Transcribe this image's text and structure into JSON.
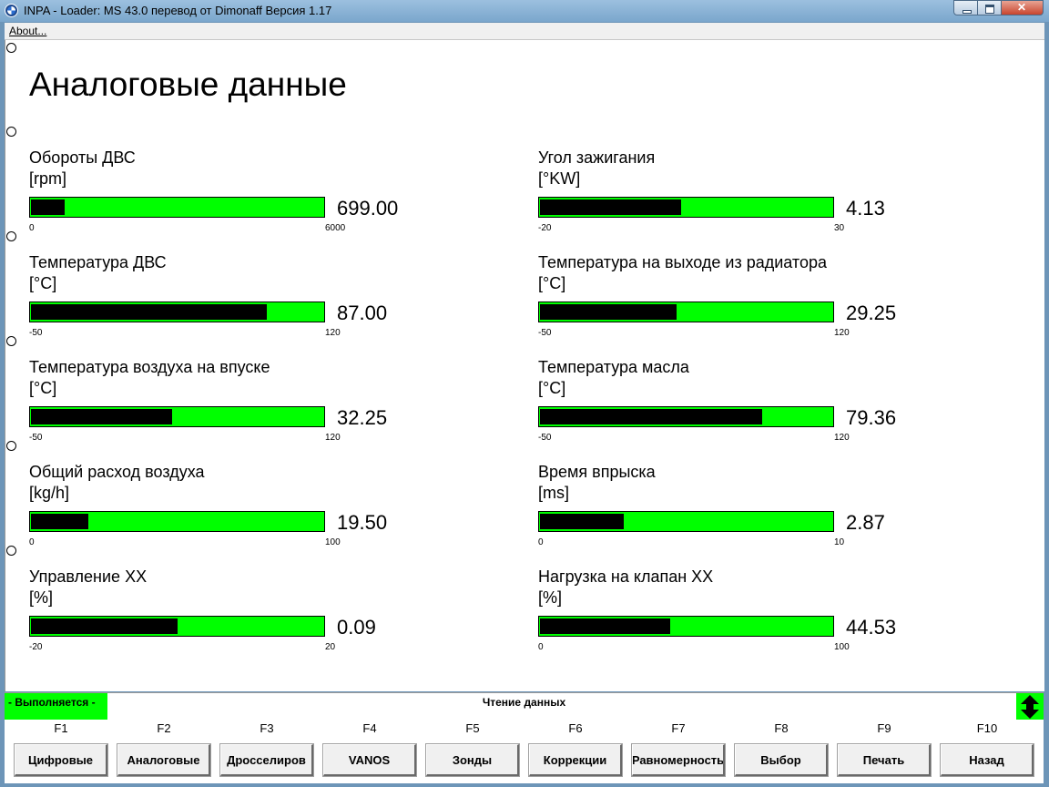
{
  "window": {
    "title": "INPA - Loader:  MS 43.0 перевод от Dimonaff Версия 1.17"
  },
  "menu": {
    "about": "About..."
  },
  "page": {
    "title": "Аналоговые данные"
  },
  "gauges": [
    {
      "label": "Обороты ДВС",
      "unit": "[rpm]",
      "value": "699.00",
      "min": "0",
      "max": "6000",
      "level": 0.1165
    },
    {
      "label": "Угол зажигания",
      "unit": "[°KW]",
      "value": "4.13",
      "min": "-20",
      "max": "30",
      "level": 0.4826
    },
    {
      "label": "Температура ДВС",
      "unit": "[°C]",
      "value": "87.00",
      "min": "-50",
      "max": "120",
      "level": 0.8059
    },
    {
      "label": "Температура на выходе из радиатора",
      "unit": "[°C]",
      "value": "29.25",
      "min": "-50",
      "max": "120",
      "level": 0.4662
    },
    {
      "label": "Температура воздуха на впуске",
      "unit": "[°C]",
      "value": "32.25",
      "min": "-50",
      "max": "120",
      "level": 0.4838
    },
    {
      "label": "Температура масла",
      "unit": "[°C]",
      "value": "79.36",
      "min": "-50",
      "max": "120",
      "level": 0.7609
    },
    {
      "label": "Общий расход воздуха",
      "unit": "[kg/h]",
      "value": "19.50",
      "min": "0",
      "max": "100",
      "level": 0.195
    },
    {
      "label": "Время впрыска",
      "unit": "[ms]",
      "value": "2.87",
      "min": "0",
      "max": "10",
      "level": 0.287
    },
    {
      "label": "Управление XX",
      "unit": "[%]",
      "value": "0.09",
      "min": "-20",
      "max": "20",
      "level": 0.5023
    },
    {
      "label": "Нагрузка на клапан XX",
      "unit": "[%]",
      "value": "44.53",
      "min": "0",
      "max": "100",
      "level": 0.4453
    }
  ],
  "status": {
    "running": "- Выполняется -",
    "message": "Чтение данных"
  },
  "fkeys": [
    {
      "key": "F1",
      "label": "Цифровые"
    },
    {
      "key": "F2",
      "label": "Аналоговые"
    },
    {
      "key": "F3",
      "label": "Дросселиров"
    },
    {
      "key": "F4",
      "label": "VANOS"
    },
    {
      "key": "F5",
      "label": "Зонды"
    },
    {
      "key": "F6",
      "label": "Коррекции"
    },
    {
      "key": "F7",
      "label": "Равномерность"
    },
    {
      "key": "F8",
      "label": "Выбор"
    },
    {
      "key": "F9",
      "label": "Печать"
    },
    {
      "key": "F10",
      "label": "Назад"
    }
  ],
  "colors": {
    "bar_background": "#00ff00",
    "bar_fill": "#000000",
    "status_running": "#00ff00"
  },
  "icons": {
    "app": "bmw-logo-icon",
    "scroll": "up-down-arrows-icon"
  }
}
